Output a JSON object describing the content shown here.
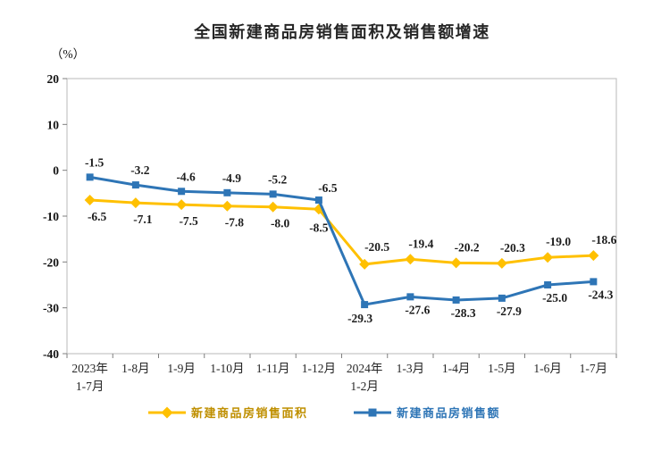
{
  "page": {
    "background": "#ffffff"
  },
  "chart": {
    "title": "全国新建商品房销售面积及销售额增速",
    "unit_label": "（%）",
    "axis_color": "#c4c4c4",
    "tick_color": "#7f7f7f",
    "legend": [
      {
        "label": "新建商品房销售面积",
        "color": "#FFC000",
        "text_color": "#BF8F00",
        "marker": "diamond"
      },
      {
        "label": "新建商品房销售额",
        "color": "#2E75B6",
        "text_color": "#2E75B6",
        "marker": "square"
      }
    ]
  },
  "chart_data": {
    "type": "line",
    "title": "全国新建商品房销售面积及销售额增速",
    "ylabel": "（%）",
    "unit": "%",
    "ylim": [
      -40,
      20
    ],
    "y_ticks": [
      20,
      10,
      0,
      -10,
      -20,
      -30,
      -40
    ],
    "grid": false,
    "legend_position": "bottom",
    "categories": [
      [
        "2023年",
        "1-7月"
      ],
      [
        "1-8月"
      ],
      [
        "1-9月"
      ],
      [
        "1-10月"
      ],
      [
        "1-11月"
      ],
      [
        "1-12月"
      ],
      [
        "2024年",
        "1-2月"
      ],
      [
        "1-3月"
      ],
      [
        "1-4月"
      ],
      [
        "1-5月"
      ],
      [
        "1-6月"
      ],
      [
        "1-7月"
      ]
    ],
    "series": [
      {
        "name": "新建商品房销售面积",
        "color": "#FFC000",
        "marker": "diamond",
        "values": [
          -6.5,
          -7.1,
          -7.5,
          -7.8,
          -8.0,
          -8.5,
          -20.5,
          -19.4,
          -20.2,
          -20.3,
          -19.0,
          -18.6
        ]
      },
      {
        "name": "新建商品房销售额",
        "color": "#2E75B6",
        "marker": "square",
        "values": [
          -1.5,
          -3.2,
          -4.6,
          -4.9,
          -5.2,
          -6.5,
          -29.3,
          -27.6,
          -28.3,
          -27.9,
          -25.0,
          -24.3
        ]
      }
    ]
  }
}
